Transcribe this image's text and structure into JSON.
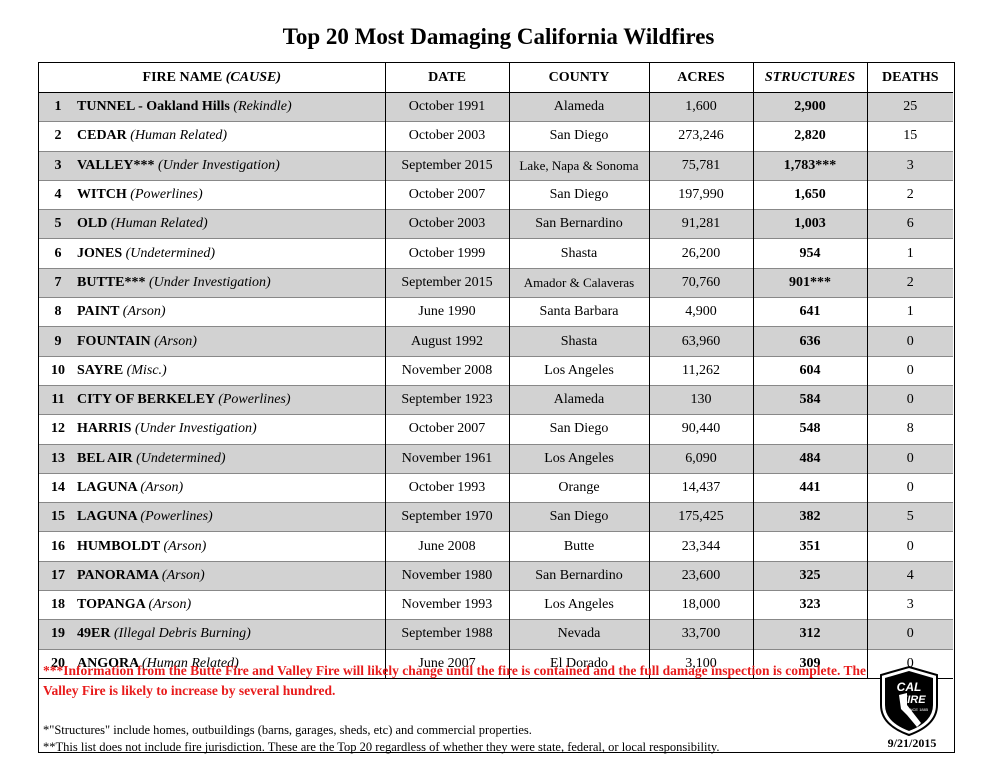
{
  "title": "Top 20 Most Damaging California Wildfires",
  "headers": {
    "fire_name": "FIRE NAME",
    "cause": "(CAUSE)",
    "date": "DATE",
    "county": "COUNTY",
    "acres": "ACRES",
    "structures": "STRUCTURES",
    "deaths": "DEATHS"
  },
  "rows": [
    {
      "rank": "1",
      "name": "TUNNEL - Oakland Hills",
      "cause": "(Rekindle)",
      "date": "October 1991",
      "county": "Alameda",
      "acres": "1,600",
      "structures": "2,900",
      "deaths": "25"
    },
    {
      "rank": "2",
      "name": "CEDAR",
      "cause": "(Human Related)",
      "date": "October 2003",
      "county": "San Diego",
      "acres": "273,246",
      "structures": "2,820",
      "deaths": "15"
    },
    {
      "rank": "3",
      "name": "VALLEY***",
      "cause": "(Under Investigation)",
      "date": "September 2015",
      "county": "Lake, Napa & Sonoma",
      "acres": "75,781",
      "structures": "1,783***",
      "deaths": "3"
    },
    {
      "rank": "4",
      "name": "WITCH",
      "cause": "(Powerlines)",
      "date": "October 2007",
      "county": "San Diego",
      "acres": "197,990",
      "structures": "1,650",
      "deaths": "2"
    },
    {
      "rank": "5",
      "name": "OLD",
      "cause": "(Human Related)",
      "date": "October 2003",
      "county": "San Bernardino",
      "acres": "91,281",
      "structures": "1,003",
      "deaths": "6"
    },
    {
      "rank": "6",
      "name": "JONES",
      "cause": "(Undetermined)",
      "date": "October 1999",
      "county": "Shasta",
      "acres": "26,200",
      "structures": "954",
      "deaths": "1"
    },
    {
      "rank": "7",
      "name": "BUTTE***",
      "cause": "(Under Investigation)",
      "date": "September 2015",
      "county": "Amador & Calaveras",
      "acres": "70,760",
      "structures": "901***",
      "deaths": "2"
    },
    {
      "rank": "8",
      "name": "PAINT",
      "cause": "(Arson)",
      "date": "June 1990",
      "county": "Santa Barbara",
      "acres": "4,900",
      "structures": "641",
      "deaths": "1"
    },
    {
      "rank": "9",
      "name": "FOUNTAIN",
      "cause": "(Arson)",
      "date": "August 1992",
      "county": "Shasta",
      "acres": "63,960",
      "structures": "636",
      "deaths": "0"
    },
    {
      "rank": "10",
      "name": "SAYRE",
      "cause": "(Misc.)",
      "date": "November 2008",
      "county": "Los Angeles",
      "acres": "11,262",
      "structures": "604",
      "deaths": "0"
    },
    {
      "rank": "11",
      "name": "CITY OF BERKELEY",
      "cause": "(Powerlines)",
      "date": "September 1923",
      "county": "Alameda",
      "acres": "130",
      "structures": "584",
      "deaths": "0"
    },
    {
      "rank": "12",
      "name": "HARRIS",
      "cause": "(Under Investigation)",
      "date": "October 2007",
      "county": "San Diego",
      "acres": "90,440",
      "structures": "548",
      "deaths": "8"
    },
    {
      "rank": "13",
      "name": "BEL AIR",
      "cause": "(Undetermined)",
      "date": "November 1961",
      "county": "Los Angeles",
      "acres": "6,090",
      "structures": "484",
      "deaths": "0"
    },
    {
      "rank": "14",
      "name": "LAGUNA",
      "cause": "(Arson)",
      "date": "October 1993",
      "county": "Orange",
      "acres": "14,437",
      "structures": "441",
      "deaths": "0"
    },
    {
      "rank": "15",
      "name": "LAGUNA",
      "cause": "(Powerlines)",
      "date": "September 1970",
      "county": "San Diego",
      "acres": "175,425",
      "structures": "382",
      "deaths": "5"
    },
    {
      "rank": "16",
      "name": "HUMBOLDT",
      "cause": "(Arson)",
      "date": "June 2008",
      "county": "Butte",
      "acres": "23,344",
      "structures": "351",
      "deaths": "0"
    },
    {
      "rank": "17",
      "name": "PANORAMA",
      "cause": "(Arson)",
      "date": "November 1980",
      "county": "San Bernardino",
      "acres": "23,600",
      "structures": "325",
      "deaths": "4"
    },
    {
      "rank": "18",
      "name": "TOPANGA",
      "cause": "(Arson)",
      "date": "November 1993",
      "county": "Los Angeles",
      "acres": "18,000",
      "structures": "323",
      "deaths": "3"
    },
    {
      "rank": "19",
      "name": "49ER",
      "cause": "(Illegal Debris Burning)",
      "date": "September 1988",
      "county": "Nevada",
      "acres": "33,700",
      "structures": "312",
      "deaths": "0"
    },
    {
      "rank": "20",
      "name": "ANGORA",
      "cause": "(Human Related)",
      "date": "June 2007",
      "county": "El Dorado",
      "acres": "3,100",
      "structures": "309",
      "deaths": "0"
    }
  ],
  "notes": {
    "red_prefix": "***",
    "red_text": "Information from the Butte Fire and Valley Fire will likely change until the fire is contained and the full damage inspection is complete. The Valley Fire is likely to increase by several hundred.",
    "footnote_1": "*\"Structures\" include homes, outbuildings (barns, garages, sheds, etc) and commercial properties.",
    "footnote_2": "**This list does not include fire jurisdiction.  These are the Top 20 regardless of whether they were state, federal, or local responsibility."
  },
  "logo": {
    "text_top": "CAL",
    "text_bottom": "FIRE",
    "since": "SINCE 1885"
  },
  "date_stamp": "9/21/2015",
  "colors": {
    "stripe": "#d2d2d2",
    "note_red": "#e81b1b"
  }
}
